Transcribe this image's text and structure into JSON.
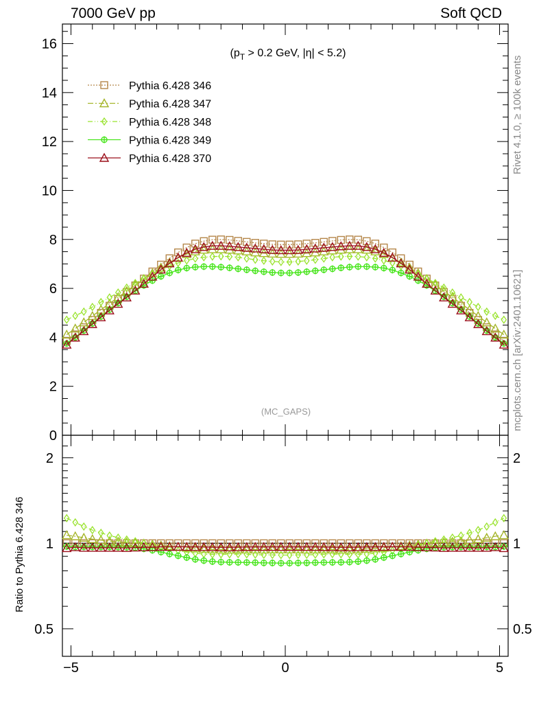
{
  "header": {
    "left": "7000 GeV pp",
    "right": "Soft QCD"
  },
  "side_labels": {
    "rivet": "Rivet 4.1.0, ≥ 100k events",
    "mcplots": "mcplots.cern.ch [arXiv:2401.10621]"
  },
  "colors": {
    "s346": "#b5874a",
    "s347": "#a5b52a",
    "s348": "#99e32d",
    "s349": "#49e51d",
    "s370": "#9b0f1a"
  },
  "chart_data": [
    {
      "type": "line",
      "title": "(pT > 0.2 GeV, |η| < 5.2)",
      "annotation": "(MC_GAPS)",
      "xlim": [
        -5.2,
        5.2
      ],
      "ylim": [
        0,
        16.8
      ],
      "yticks": [
        0,
        2,
        4,
        6,
        8,
        10,
        12,
        14,
        16
      ],
      "xticks": [
        -5,
        0,
        5
      ],
      "legend_position": "top-left",
      "x": [
        -5.1,
        -4.9,
        -4.7,
        -4.5,
        -4.3,
        -4.1,
        -3.9,
        -3.7,
        -3.5,
        -3.3,
        -3.1,
        -2.9,
        -2.7,
        -2.5,
        -2.3,
        -2.1,
        -1.9,
        -1.7,
        -1.5,
        -1.3,
        -1.1,
        -0.9,
        -0.7,
        -0.5,
        -0.3,
        -0.1,
        0.1,
        0.3,
        0.5,
        0.7,
        0.9,
        1.1,
        1.3,
        1.5,
        1.7,
        1.9,
        2.1,
        2.3,
        2.5,
        2.7,
        2.9,
        3.1,
        3.3,
        3.5,
        3.7,
        3.9,
        4.1,
        4.3,
        4.5,
        4.7,
        4.9,
        5.1
      ],
      "series": [
        {
          "name": "Pythia 6.428 346",
          "key": "s346",
          "marker": "square-open",
          "dash": "2,2",
          "values": [
            3.85,
            4.12,
            4.41,
            4.71,
            5.0,
            5.29,
            5.57,
            5.85,
            6.12,
            6.4,
            6.69,
            6.97,
            7.23,
            7.47,
            7.67,
            7.83,
            7.93,
            7.99,
            8.0,
            7.98,
            7.94,
            7.9,
            7.86,
            7.83,
            7.8,
            7.79,
            7.79,
            7.8,
            7.83,
            7.86,
            7.9,
            7.94,
            7.98,
            8.0,
            7.99,
            7.93,
            7.83,
            7.67,
            7.47,
            7.23,
            6.97,
            6.69,
            6.4,
            6.12,
            5.85,
            5.57,
            5.29,
            5.0,
            4.71,
            4.41,
            4.12,
            3.85
          ]
        },
        {
          "name": "Pythia 6.428 347",
          "key": "s347",
          "marker": "triangle-open",
          "dash": "8,3,2,3",
          "values": [
            4.11,
            4.36,
            4.61,
            4.87,
            5.13,
            5.38,
            5.64,
            5.89,
            6.14,
            6.38,
            6.62,
            6.85,
            7.06,
            7.25,
            7.4,
            7.51,
            7.58,
            7.6,
            7.6,
            7.58,
            7.55,
            7.51,
            7.47,
            7.44,
            7.42,
            7.41,
            7.41,
            7.42,
            7.44,
            7.47,
            7.51,
            7.55,
            7.58,
            7.6,
            7.6,
            7.58,
            7.51,
            7.4,
            7.25,
            7.06,
            6.85,
            6.62,
            6.38,
            6.14,
            5.89,
            5.64,
            5.38,
            5.13,
            4.87,
            4.61,
            4.36,
            4.11
          ]
        },
        {
          "name": "Pythia 6.428 348",
          "key": "s348",
          "marker": "diamond-open",
          "dash": "7,3,1,3,1,3",
          "values": [
            4.72,
            4.88,
            5.05,
            5.24,
            5.44,
            5.63,
            5.83,
            6.03,
            6.22,
            6.41,
            6.59,
            6.76,
            6.91,
            7.04,
            7.14,
            7.22,
            7.27,
            7.3,
            7.31,
            7.3,
            7.27,
            7.22,
            7.17,
            7.13,
            7.1,
            7.08,
            7.08,
            7.1,
            7.13,
            7.17,
            7.22,
            7.27,
            7.3,
            7.31,
            7.3,
            7.27,
            7.22,
            7.14,
            7.04,
            6.91,
            6.76,
            6.59,
            6.41,
            6.22,
            6.03,
            5.83,
            5.63,
            5.44,
            5.24,
            5.05,
            4.88,
            4.72
          ]
        },
        {
          "name": "Pythia 6.428 349",
          "key": "s349",
          "marker": "cross-circle",
          "dash": "",
          "values": [
            3.75,
            4.0,
            4.28,
            4.57,
            4.85,
            5.13,
            5.4,
            5.66,
            5.9,
            6.12,
            6.32,
            6.49,
            6.63,
            6.75,
            6.83,
            6.87,
            6.89,
            6.89,
            6.87,
            6.84,
            6.8,
            6.76,
            6.72,
            6.68,
            6.65,
            6.63,
            6.63,
            6.65,
            6.68,
            6.72,
            6.76,
            6.8,
            6.84,
            6.87,
            6.89,
            6.89,
            6.87,
            6.83,
            6.75,
            6.63,
            6.49,
            6.32,
            6.12,
            5.9,
            5.66,
            5.4,
            5.13,
            4.85,
            4.57,
            4.28,
            4.0,
            3.75
          ]
        },
        {
          "name": "Pythia 6.428 370",
          "key": "s370",
          "marker": "triangle-open",
          "dash": "",
          "values": [
            3.7,
            3.99,
            4.25,
            4.54,
            4.82,
            5.1,
            5.37,
            5.63,
            5.91,
            6.19,
            6.48,
            6.77,
            7.02,
            7.26,
            7.45,
            7.6,
            7.69,
            7.74,
            7.74,
            7.72,
            7.69,
            7.66,
            7.63,
            7.6,
            7.57,
            7.56,
            7.56,
            7.57,
            7.6,
            7.63,
            7.66,
            7.69,
            7.72,
            7.74,
            7.74,
            7.69,
            7.6,
            7.45,
            7.26,
            7.02,
            6.77,
            6.48,
            6.19,
            5.91,
            5.63,
            5.37,
            5.1,
            4.82,
            4.54,
            4.25,
            3.99,
            3.7
          ]
        }
      ]
    },
    {
      "type": "line",
      "title": "",
      "ylabel": "Ratio to Pythia 6.428 346",
      "yscale": "log",
      "ylim": [
        0.4,
        2.4
      ],
      "yticks": [
        0.5,
        1,
        2
      ],
      "xticks": [
        -5,
        0,
        5
      ],
      "xlim": [
        -5.2,
        5.2
      ]
    }
  ]
}
